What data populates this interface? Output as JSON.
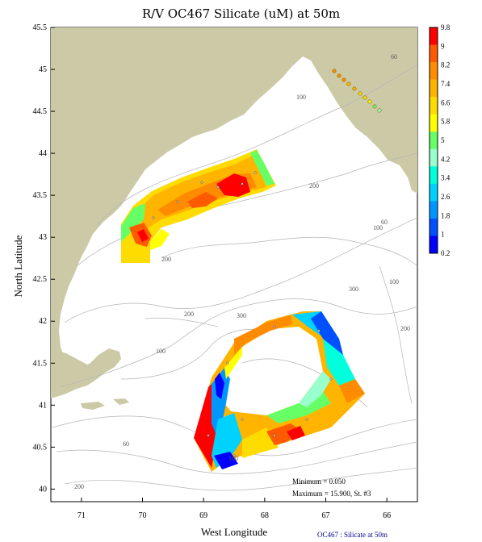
{
  "title": "R/V OC467 Silicate (uM) at 50m",
  "axes": {
    "xlabel": "West Longitude",
    "ylabel": "North Latitude",
    "x_ticks": [
      "71",
      "70",
      "69",
      "68",
      "67",
      "66"
    ],
    "y_ticks": [
      "45.5",
      "45",
      "44.5",
      "44",
      "43.5",
      "43",
      "42.5",
      "42",
      "41.5",
      "41",
      "40.5",
      "40"
    ],
    "xlim": [
      71.5,
      65.5
    ],
    "ylim": [
      39.85,
      45.5
    ]
  },
  "colorbar": {
    "labels": [
      "9.8",
      "9",
      "8.2",
      "7.4",
      "6.6",
      "5.8",
      "5",
      "4.2",
      "3.4",
      "2.6",
      "1.8",
      "1",
      "0.2"
    ],
    "colors": [
      "#ff0000",
      "#ff5a00",
      "#ff8c00",
      "#ffb400",
      "#ffdc00",
      "#ffff00",
      "#66ff66",
      "#99ffcc",
      "#00ffdc",
      "#00d2ff",
      "#0096ff",
      "#0050ff",
      "#0000ff"
    ]
  },
  "contour_labels": [
    "60",
    "100",
    "200",
    "300",
    "60",
    "100",
    "200",
    "300",
    "200",
    "100",
    "100",
    "200",
    "60",
    "100",
    "200"
  ],
  "stats": {
    "minimum": "Minimum = 0.050",
    "maximum": "Maximum = 15.900, St. #3"
  },
  "footer": "OC467 : Silicate at 50m",
  "colors": {
    "land": "#cccaa6",
    "contour": "#b4b4b4",
    "station": "#555555"
  }
}
